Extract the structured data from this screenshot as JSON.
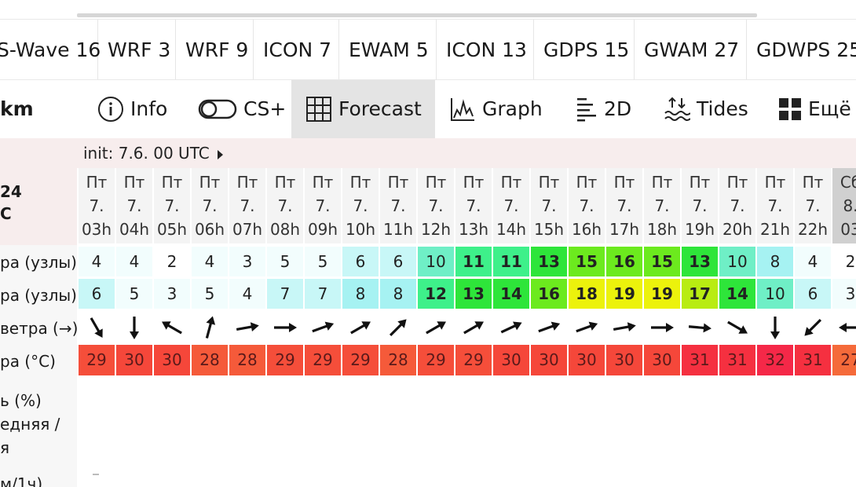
{
  "model_tabs": [
    "S-Wave 16",
    "WRF 3",
    "WRF 9",
    "ICON 7",
    "EWAM 5",
    "ICON 13",
    "GDPS 15",
    "GWAM 27",
    "GDWPS 25"
  ],
  "view_tabs": {
    "km": "km",
    "info": "Info",
    "csplus": "CS+",
    "forecast": "Forecast",
    "graph": "Graph",
    "twod": "2D",
    "tides": "Tides",
    "more": "Ещё"
  },
  "init_label": "init: 7.6. 00 UTC",
  "left_labels": {
    "model_res_a": "24",
    "model_res_b": "C",
    "wind": "ра (узлы)",
    "gust": "ра (узлы)",
    "direction": "ветра (→)",
    "temperature": "ра (°C)",
    "cloud": "ь (%)",
    "cloud2": "едняя /",
    "cloud3": "я",
    "precip": "м/1ч)"
  },
  "hours": [
    {
      "day": "Пт",
      "date": "7.",
      "hour": "03h"
    },
    {
      "day": "Пт",
      "date": "7.",
      "hour": "04h"
    },
    {
      "day": "Пт",
      "date": "7.",
      "hour": "05h"
    },
    {
      "day": "Пт",
      "date": "7.",
      "hour": "06h"
    },
    {
      "day": "Пт",
      "date": "7.",
      "hour": "07h"
    },
    {
      "day": "Пт",
      "date": "7.",
      "hour": "08h"
    },
    {
      "day": "Пт",
      "date": "7.",
      "hour": "09h"
    },
    {
      "day": "Пт",
      "date": "7.",
      "hour": "10h"
    },
    {
      "day": "Пт",
      "date": "7.",
      "hour": "11h"
    },
    {
      "day": "Пт",
      "date": "7.",
      "hour": "12h"
    },
    {
      "day": "Пт",
      "date": "7.",
      "hour": "13h"
    },
    {
      "day": "Пт",
      "date": "7.",
      "hour": "14h"
    },
    {
      "day": "Пт",
      "date": "7.",
      "hour": "15h"
    },
    {
      "day": "Пт",
      "date": "7.",
      "hour": "16h"
    },
    {
      "day": "Пт",
      "date": "7.",
      "hour": "17h"
    },
    {
      "day": "Пт",
      "date": "7.",
      "hour": "18h"
    },
    {
      "day": "Пт",
      "date": "7.",
      "hour": "19h"
    },
    {
      "day": "Пт",
      "date": "7.",
      "hour": "20h"
    },
    {
      "day": "Пт",
      "date": "7.",
      "hour": "21h"
    },
    {
      "day": "Пт",
      "date": "7.",
      "hour": "22h"
    },
    {
      "day": "Сб",
      "date": "8.",
      "hour": "03"
    }
  ],
  "wind_knots": [
    "4",
    "4",
    "2",
    "4",
    "3",
    "5",
    "5",
    "6",
    "6",
    "10",
    "11",
    "11",
    "13",
    "15",
    "16",
    "15",
    "13",
    "10",
    "8",
    "4",
    "2"
  ],
  "gust_knots": [
    "6",
    "5",
    "3",
    "5",
    "4",
    "7",
    "7",
    "8",
    "8",
    "12",
    "13",
    "14",
    "16",
    "18",
    "19",
    "19",
    "17",
    "14",
    "10",
    "6",
    "3"
  ],
  "wind_dir_deg": [
    150,
    180,
    -60,
    15,
    80,
    90,
    70,
    60,
    45,
    60,
    60,
    65,
    70,
    70,
    80,
    90,
    95,
    120,
    180,
    225,
    270
  ],
  "temperature_c": [
    "29",
    "30",
    "30",
    "28",
    "28",
    "29",
    "29",
    "29",
    "28",
    "29",
    "29",
    "30",
    "30",
    "30",
    "30",
    "30",
    "31",
    "31",
    "32",
    "31",
    "27"
  ],
  "precip_dash": "-"
}
